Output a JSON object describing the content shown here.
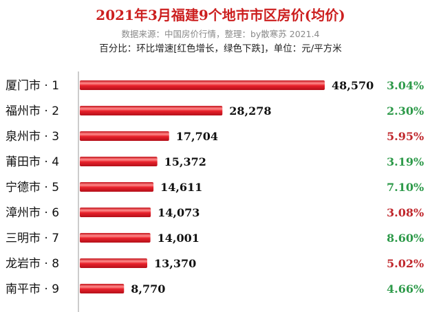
{
  "header": {
    "title": "2021年3月福建9个地市市区房价(均价)",
    "subtitle": "数据来源：中国房价行情，整理：by散寒苏 2021.4",
    "note": "百分比：环比增速[红色增长，绿色下跌]，单位：元/平方米"
  },
  "colors": {
    "bar": "#e8202a",
    "bar_highlight": "#ff9a9a",
    "increase": "#c0282d",
    "decrease": "#2e9a4a",
    "value_text": "#111111"
  },
  "chart_data": {
    "type": "bar",
    "orientation": "horizontal",
    "categories": [
      "厦门市 · 1",
      "福州市 · 2",
      "泉州市 · 3",
      "莆田市 · 4",
      "宁德市 · 5",
      "漳州市 · 6",
      "三明市 · 7",
      "龙岩市 · 8",
      "南平市 · 9"
    ],
    "values": [
      48570,
      28278,
      17704,
      15372,
      14611,
      14073,
      14001,
      13370,
      8770
    ],
    "value_labels": [
      "48,570",
      "28,278",
      "17,704",
      "15,372",
      "14,611",
      "14,073",
      "14,001",
      "13,370",
      "8,770"
    ],
    "changes": [
      "3.04%",
      "2.30%",
      "5.95%",
      "3.19%",
      "7.10%",
      "3.08%",
      "8.60%",
      "5.02%",
      "4.66%"
    ],
    "change_direction": [
      "down",
      "down",
      "up",
      "down",
      "down",
      "up",
      "down",
      "up",
      "down"
    ],
    "xlim": [
      0,
      48570
    ],
    "grid": false,
    "legend": "none"
  }
}
